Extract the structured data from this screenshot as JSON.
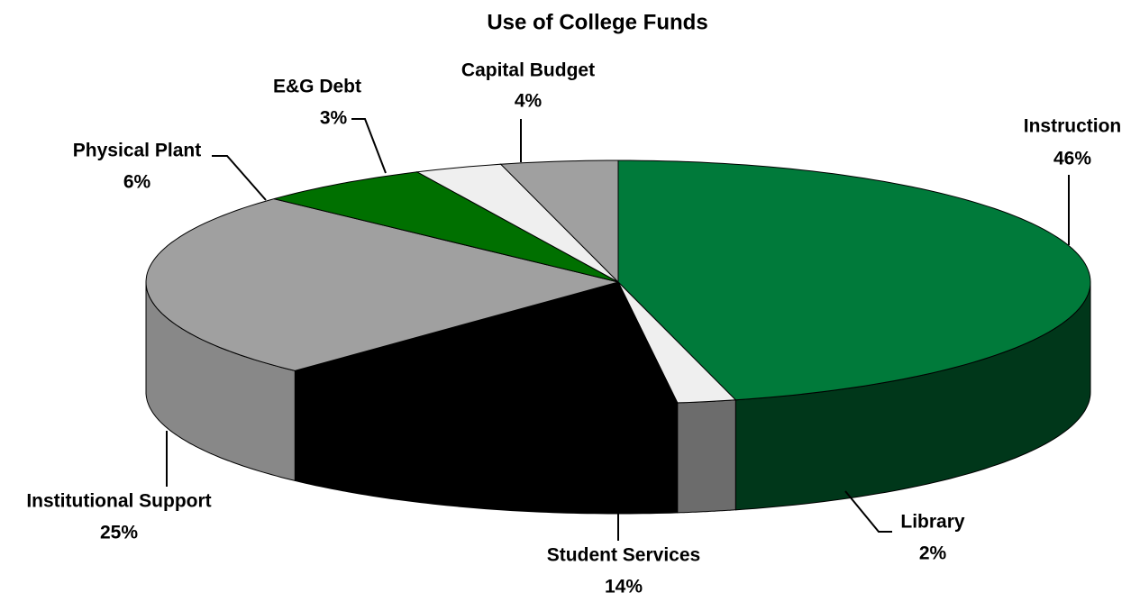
{
  "chart_data": {
    "type": "pie",
    "title": "Use of College Funds",
    "categories": [
      "Instruction",
      "Library",
      "Student Services",
      "Institutional Support",
      "Physical Plant",
      "E&G Debt",
      "Capital Budget"
    ],
    "values": [
      46,
      2,
      14,
      25,
      6,
      3,
      4
    ],
    "value_labels": [
      "46%",
      "2%",
      "14%",
      "25%",
      "6%",
      "3%",
      "4%"
    ],
    "colors": [
      "#007a3a",
      "#efefef",
      "#000000",
      "#a0a0a0",
      "#007000",
      "#efefef",
      "#a0a0a0"
    ]
  }
}
